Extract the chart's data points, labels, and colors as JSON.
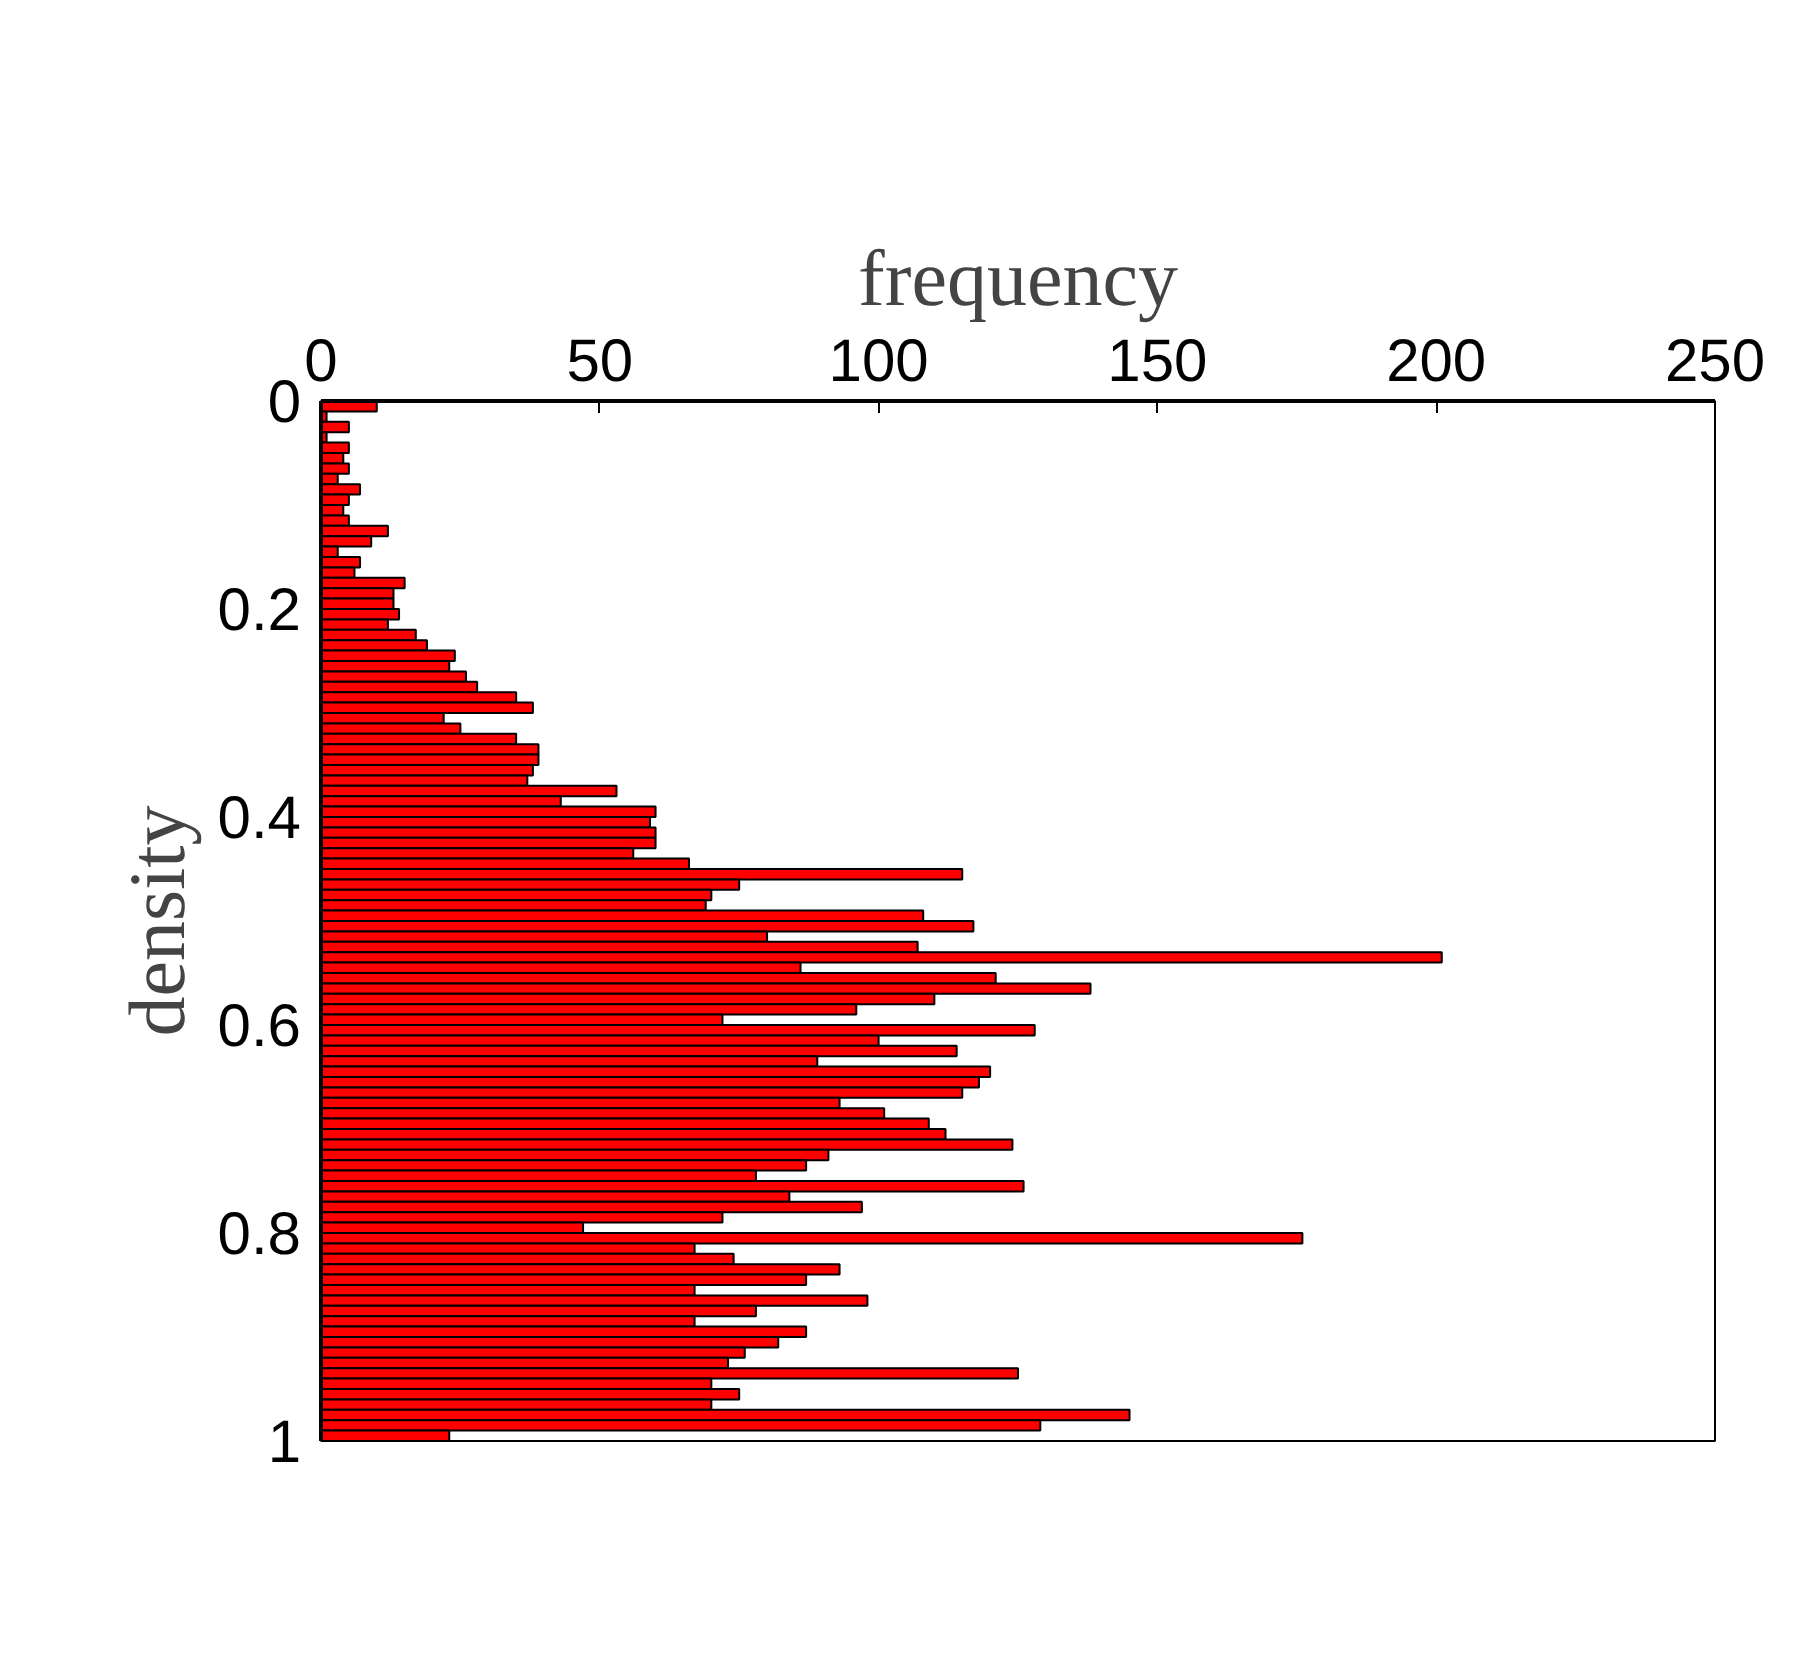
{
  "chart_data": {
    "type": "histogram",
    "orientation": "horizontal",
    "color": "#ff0000",
    "xlabel": "frequency",
    "ylabel": "density",
    "xlim": [
      0,
      250
    ],
    "xticks": [
      0,
      50,
      100,
      150,
      200,
      250
    ],
    "ylim": [
      1,
      0
    ],
    "yticks": [
      0,
      0.2,
      0.4,
      0.6,
      0.8,
      1
    ],
    "bins": [
      0,
      0.01,
      0.02,
      0.03,
      0.04,
      0.05,
      0.06,
      0.07,
      0.08,
      0.09,
      0.1,
      0.11,
      0.12,
      0.13,
      0.14,
      0.15,
      0.16,
      0.17,
      0.18,
      0.19,
      0.2,
      0.21,
      0.22,
      0.23,
      0.24,
      0.25,
      0.26,
      0.27,
      0.28,
      0.29,
      0.3,
      0.31,
      0.32,
      0.33,
      0.34,
      0.35,
      0.36,
      0.37,
      0.38,
      0.39,
      0.4,
      0.41,
      0.42,
      0.43,
      0.44,
      0.45,
      0.46,
      0.47,
      0.48,
      0.49,
      0.5,
      0.51,
      0.52,
      0.53,
      0.54,
      0.55,
      0.56,
      0.57,
      0.58,
      0.59,
      0.6,
      0.61,
      0.62,
      0.63,
      0.64,
      0.65,
      0.66,
      0.67,
      0.68,
      0.69,
      0.7,
      0.71,
      0.72,
      0.73,
      0.74,
      0.75,
      0.76,
      0.77,
      0.78,
      0.79,
      0.8,
      0.81,
      0.82,
      0.83,
      0.84,
      0.85,
      0.86,
      0.87,
      0.88,
      0.89,
      0.9,
      0.91,
      0.92,
      0.93,
      0.94,
      0.95,
      0.96,
      0.97,
      0.98,
      0.99,
      1
    ],
    "values": [
      10,
      1,
      5,
      1,
      5,
      4,
      5,
      3,
      7,
      5,
      4,
      5,
      12,
      9,
      3,
      7,
      6,
      15,
      13,
      13,
      14,
      12,
      17,
      19,
      24,
      23,
      26,
      28,
      35,
      38,
      22,
      25,
      35,
      39,
      39,
      38,
      37,
      53,
      43,
      60,
      59,
      60,
      60,
      56,
      66,
      115,
      75,
      70,
      69,
      108,
      117,
      80,
      107,
      201,
      86,
      121,
      138,
      110,
      96,
      72,
      128,
      100,
      114,
      89,
      120,
      118,
      115,
      93,
      101,
      109,
      112,
      124,
      91,
      87,
      78,
      126,
      84,
      97,
      72,
      47,
      176,
      67,
      74,
      93,
      87,
      67,
      98,
      78,
      67,
      87,
      82,
      76,
      73,
      125,
      70,
      75,
      70,
      145,
      129,
      23
    ]
  }
}
